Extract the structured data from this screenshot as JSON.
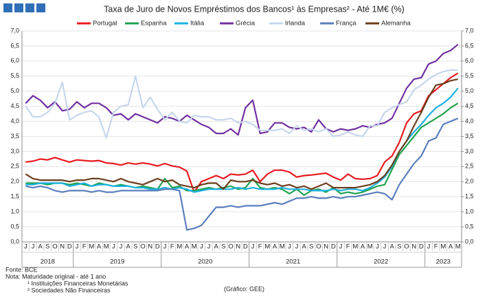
{
  "chart_data": {
    "type": "line",
    "title": "Taxa de Juro de Novos Empréstimos dos Bancos¹ às Empresas² -  Até 1M€ (%)",
    "categories": [
      "J",
      "J",
      "A",
      "S",
      "O",
      "N",
      "D",
      "J",
      "F",
      "M",
      "A",
      "M",
      "J",
      "J",
      "A",
      "S",
      "O",
      "N",
      "D",
      "J",
      "F",
      "M",
      "A",
      "M",
      "J",
      "J",
      "A",
      "S",
      "O",
      "N",
      "D",
      "J",
      "F",
      "M",
      "A",
      "M",
      "J",
      "J",
      "A",
      "S",
      "O",
      "N",
      "D",
      "J",
      "F",
      "M",
      "A",
      "M",
      "J",
      "J",
      "A",
      "S",
      "O",
      "N",
      "D",
      "J",
      "F",
      "M",
      "A",
      "M"
    ],
    "years": [
      "2018",
      "2019",
      "2020",
      "2021",
      "2022",
      "2023"
    ],
    "series": [
      {
        "name": "Portugal",
        "color": "#e8191f",
        "values": [
          2.65,
          2.68,
          2.75,
          2.72,
          2.8,
          2.72,
          2.65,
          2.72,
          2.7,
          2.68,
          2.7,
          2.62,
          2.6,
          2.55,
          2.62,
          2.58,
          2.62,
          2.58,
          2.52,
          2.6,
          2.52,
          2.48,
          2.35,
          1.65,
          2.0,
          2.1,
          2.2,
          2.1,
          2.25,
          2.22,
          2.25,
          2.38,
          2.0,
          2.25,
          2.38,
          2.38,
          2.32,
          2.15,
          2.2,
          2.22,
          2.25,
          2.28,
          2.15,
          2.05,
          2.25,
          2.1,
          2.08,
          2.1,
          2.2,
          2.65,
          2.85,
          3.3,
          3.95,
          4.25,
          4.35,
          4.85,
          5.05,
          5.25,
          5.45,
          5.6
        ]
      },
      {
        "name": "Espanha",
        "color": "#1fa14f",
        "values": [
          1.95,
          1.95,
          1.95,
          1.9,
          1.95,
          1.95,
          1.9,
          1.95,
          1.9,
          1.85,
          1.95,
          1.9,
          1.85,
          1.9,
          1.85,
          1.8,
          1.85,
          1.8,
          1.75,
          2.1,
          1.8,
          1.85,
          1.7,
          1.7,
          1.75,
          1.8,
          1.75,
          1.8,
          1.85,
          1.75,
          1.8,
          2.1,
          1.8,
          1.75,
          1.8,
          1.75,
          1.6,
          1.75,
          1.55,
          1.7,
          1.75,
          1.65,
          1.8,
          1.6,
          1.65,
          1.6,
          1.65,
          1.75,
          1.85,
          1.9,
          2.4,
          2.9,
          3.2,
          3.5,
          3.8,
          3.95,
          4.1,
          4.25,
          4.45,
          4.6
        ]
      },
      {
        "name": "Itália",
        "color": "#1ab0e2",
        "values": [
          1.9,
          1.9,
          1.95,
          1.95,
          1.95,
          1.95,
          1.85,
          1.9,
          1.95,
          1.85,
          1.9,
          1.9,
          1.85,
          1.85,
          1.85,
          1.8,
          1.8,
          1.75,
          1.75,
          1.8,
          1.75,
          1.8,
          1.75,
          1.65,
          1.7,
          1.75,
          1.75,
          1.75,
          1.75,
          1.8,
          1.75,
          1.8,
          1.75,
          1.75,
          1.75,
          1.8,
          1.75,
          1.75,
          1.75,
          1.7,
          1.7,
          1.7,
          1.75,
          1.7,
          1.75,
          1.75,
          1.7,
          1.8,
          1.95,
          2.15,
          2.5,
          3.0,
          3.35,
          3.65,
          3.9,
          4.2,
          4.45,
          4.6,
          4.8,
          5.1
        ]
      },
      {
        "name": "Grécia",
        "color": "#7030a0",
        "values": [
          4.6,
          4.85,
          4.7,
          4.45,
          4.65,
          4.35,
          4.4,
          4.65,
          4.45,
          4.6,
          4.6,
          4.45,
          4.2,
          4.25,
          4.05,
          4.25,
          4.15,
          4.05,
          3.95,
          4.15,
          4.1,
          4.0,
          4.2,
          4.05,
          3.9,
          3.8,
          3.6,
          3.6,
          3.75,
          3.55,
          4.45,
          4.7,
          3.6,
          3.65,
          3.95,
          3.95,
          3.8,
          3.75,
          3.8,
          3.65,
          4.05,
          3.75,
          3.65,
          3.75,
          3.7,
          3.75,
          3.85,
          3.8,
          3.9,
          3.95,
          4.1,
          4.6,
          5.1,
          5.4,
          5.45,
          5.9,
          6.0,
          6.25,
          6.35,
          6.55
        ]
      },
      {
        "name": "Irlanda",
        "color": "#c6d6ec",
        "values": [
          4.5,
          4.15,
          4.15,
          4.3,
          4.6,
          5.3,
          4.05,
          4.2,
          4.3,
          4.35,
          4.15,
          3.45,
          4.3,
          4.5,
          4.55,
          5.5,
          4.45,
          4.8,
          4.4,
          4.05,
          4.3,
          4.0,
          3.95,
          4.2,
          4.15,
          4.15,
          4.05,
          4.05,
          4.1,
          3.95,
          4.0,
          3.9,
          3.7,
          3.7,
          3.7,
          3.75,
          3.6,
          3.85,
          3.7,
          3.75,
          3.65,
          3.75,
          3.5,
          3.55,
          3.65,
          3.55,
          3.5,
          3.85,
          3.85,
          4.3,
          4.45,
          4.55,
          4.65,
          5.05,
          5.2,
          5.4,
          5.55,
          5.65,
          5.7,
          5.7
        ]
      },
      {
        "name": "França",
        "color": "#5a7dbd",
        "values": [
          1.85,
          1.8,
          1.85,
          1.8,
          1.7,
          1.65,
          1.7,
          1.7,
          1.7,
          1.65,
          1.7,
          1.65,
          1.65,
          1.7,
          1.7,
          1.7,
          1.7,
          1.7,
          1.7,
          1.75,
          1.75,
          1.7,
          0.4,
          0.45,
          0.55,
          0.85,
          1.15,
          1.15,
          1.2,
          1.15,
          1.2,
          1.2,
          1.2,
          1.25,
          1.3,
          1.25,
          1.35,
          1.45,
          1.45,
          1.5,
          1.45,
          1.45,
          1.5,
          1.45,
          1.5,
          1.5,
          1.55,
          1.6,
          1.65,
          1.6,
          1.4,
          1.9,
          2.25,
          2.6,
          2.85,
          3.35,
          3.45,
          3.9,
          4.0,
          4.1
        ]
      },
      {
        "name": "Alemanha",
        "color": "#6b3d1c",
        "values": [
          2.25,
          2.1,
          2.05,
          2.05,
          2.05,
          2.05,
          2.0,
          2.05,
          2.05,
          2.1,
          2.1,
          2.05,
          2.0,
          2.1,
          2.0,
          1.95,
          1.9,
          2.0,
          2.1,
          2.0,
          2.05,
          1.9,
          1.85,
          1.8,
          1.9,
          1.95,
          1.95,
          1.75,
          2.05,
          2.0,
          2.0,
          2.05,
          1.95,
          1.9,
          1.95,
          1.85,
          1.9,
          1.8,
          1.85,
          1.75,
          1.85,
          1.95,
          1.8,
          1.8,
          1.8,
          1.8,
          1.85,
          1.9,
          2.0,
          2.2,
          2.55,
          3.0,
          3.35,
          3.85,
          4.3,
          4.8,
          5.2,
          5.25,
          5.35,
          5.4
        ]
      }
    ],
    "ylim": [
      0,
      7
    ],
    "yticks": [
      {
        "value": 0,
        "label": "0,0"
      },
      {
        "value": 0.5,
        "label": "0,5"
      },
      {
        "value": 1,
        "label": "1,0"
      },
      {
        "value": 1.5,
        "label": "1,5"
      },
      {
        "value": 2,
        "label": "2,0"
      },
      {
        "value": 2.5,
        "label": "2,5"
      },
      {
        "value": 3,
        "label": "3,0"
      },
      {
        "value": 3.5,
        "label": "3,5"
      },
      {
        "value": 4,
        "label": "4,0"
      },
      {
        "value": 4.5,
        "label": "4,5"
      },
      {
        "value": 5,
        "label": "5,0"
      },
      {
        "value": 5.5,
        "label": "5,5"
      },
      {
        "value": 6,
        "label": "6,0"
      },
      {
        "value": 6.5,
        "label": "6,5"
      },
      {
        "value": 7,
        "label": "7,0"
      }
    ],
    "y2lim": [
      0,
      7
    ],
    "y2ticks": [
      {
        "value": 0,
        "label": "0,0"
      },
      {
        "value": 0.5,
        "label": "0,5"
      },
      {
        "value": 1,
        "label": "1,0"
      },
      {
        "value": 1.5,
        "label": "1,5"
      },
      {
        "value": 2,
        "label": "2,0"
      },
      {
        "value": 2.5,
        "label": "2,5"
      },
      {
        "value": 3,
        "label": "3,0"
      },
      {
        "value": 3.5,
        "label": "3,5"
      },
      {
        "value": 4,
        "label": "4,0"
      },
      {
        "value": 4.5,
        "label": "4,5"
      },
      {
        "value": 5,
        "label": "5,0"
      },
      {
        "value": 5.5,
        "label": "5,5"
      },
      {
        "value": 6,
        "label": "6,0"
      },
      {
        "value": 6.5,
        "label": "6,5"
      },
      {
        "value": 7,
        "label": "7,0"
      }
    ],
    "grid": true,
    "notes": [
      "Fonte: BCE",
      "Nota: Maturidade original - até 1 ano",
      "¹ Instituições Financeiras Monetárias",
      "² Sociedades Não Financeiras"
    ],
    "credit": "(Gráfico: GEE)"
  }
}
